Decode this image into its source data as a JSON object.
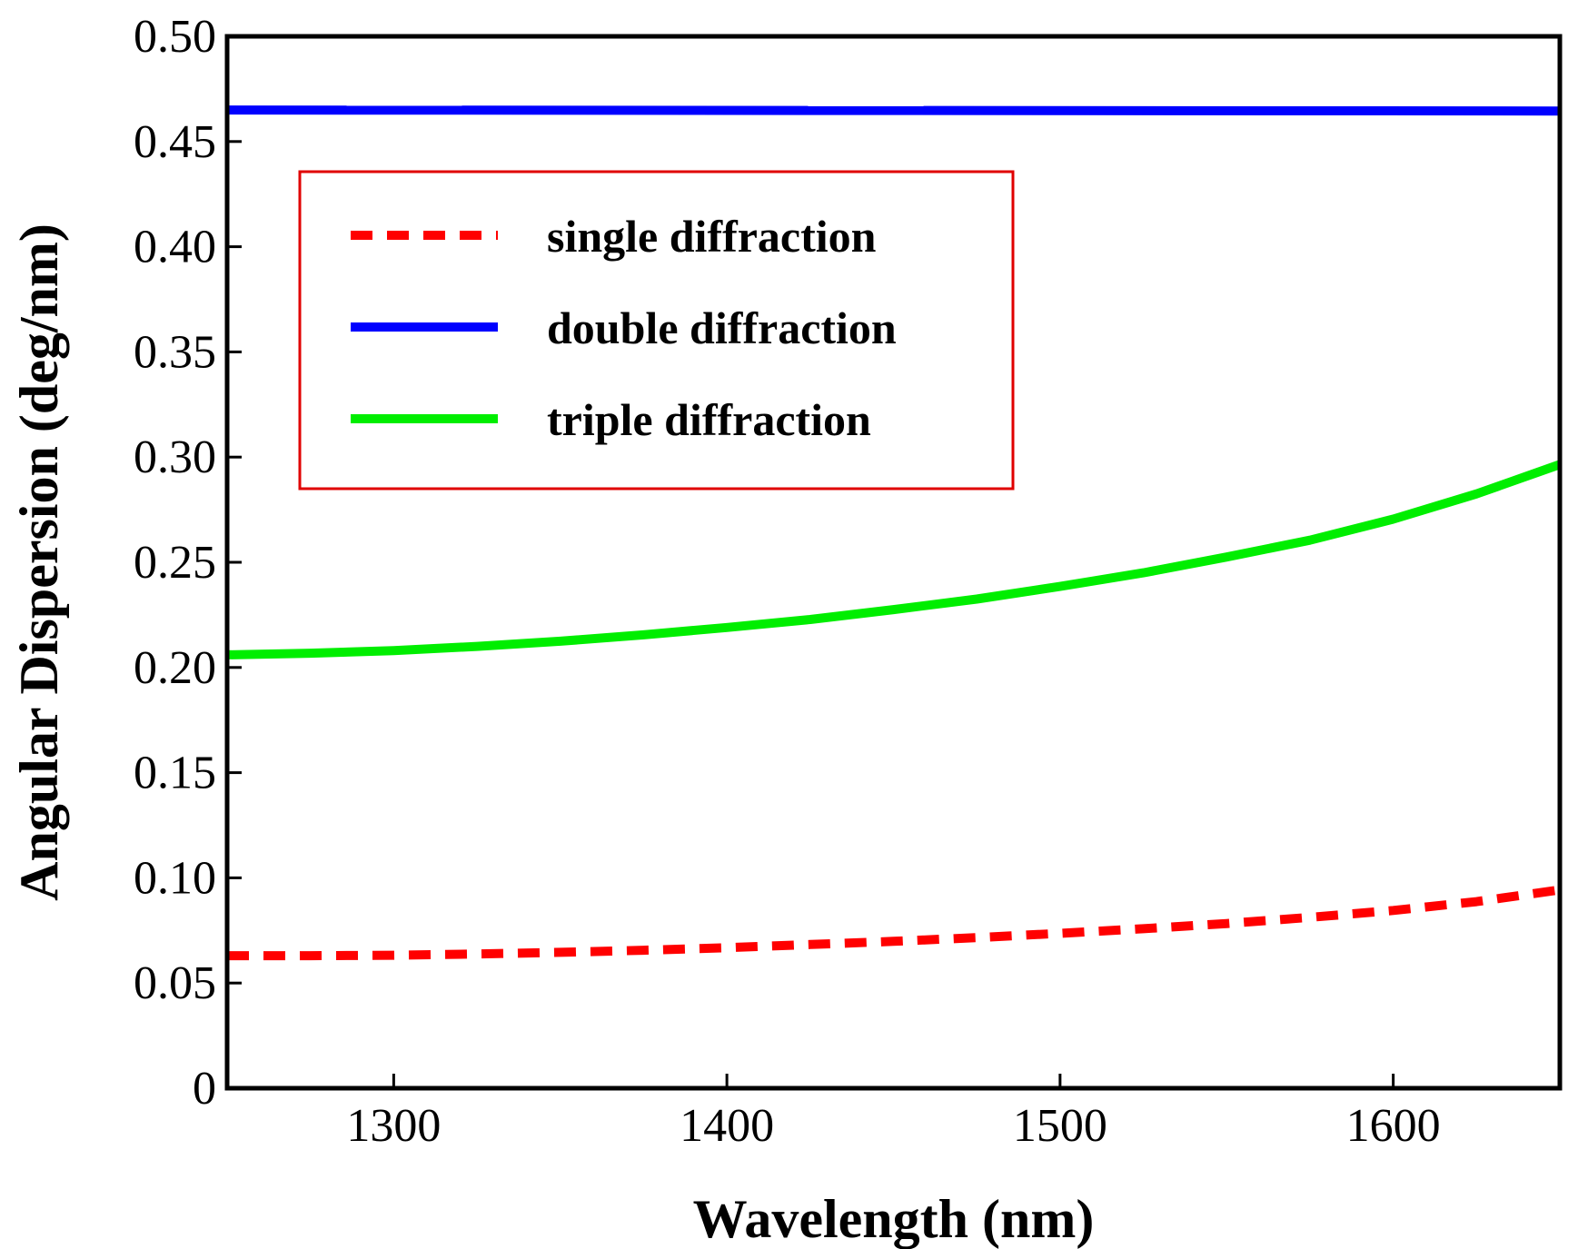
{
  "chart_data": {
    "type": "line",
    "title": "",
    "xlabel": "Wavelength (nm)",
    "ylabel": "Angular Dispersion (deg/nm)",
    "xlim": [
      1250,
      1650
    ],
    "ylim": [
      0,
      0.5
    ],
    "xticks": [
      1300,
      1400,
      1500,
      1600
    ],
    "xtick_labels": [
      "1300",
      "1400",
      "1500",
      "1600"
    ],
    "yticks": [
      0,
      0.05,
      0.1,
      0.15,
      0.2,
      0.25,
      0.3,
      0.35,
      0.4,
      0.45,
      0.5
    ],
    "ytick_labels": [
      "0",
      "0.05",
      "0.10",
      "0.15",
      "0.20",
      "0.25",
      "0.30",
      "0.35",
      "0.40",
      "0.45",
      "0.50"
    ],
    "grid": false,
    "legend_position": "upper-left",
    "legend_border_color": "#e00000",
    "series": [
      {
        "name": "single diffraction",
        "color": "#ff0000",
        "style": "dashed",
        "x": [
          1250,
          1275,
          1300,
          1325,
          1350,
          1375,
          1400,
          1425,
          1450,
          1475,
          1500,
          1525,
          1550,
          1575,
          1600,
          1625,
          1650
        ],
        "y": [
          0.063,
          0.063,
          0.0632,
          0.0638,
          0.0646,
          0.0656,
          0.0668,
          0.0683,
          0.0698,
          0.0716,
          0.0736,
          0.0758,
          0.0783,
          0.0812,
          0.0845,
          0.0887,
          0.0943
        ]
      },
      {
        "name": "double diffraction",
        "color": "#0000ff",
        "style": "solid",
        "x": [
          1250,
          1650
        ],
        "y": [
          0.465,
          0.4645
        ]
      },
      {
        "name": "triple diffraction",
        "color": "#00ee00",
        "style": "solid",
        "x": [
          1250,
          1275,
          1300,
          1325,
          1350,
          1375,
          1400,
          1425,
          1450,
          1475,
          1500,
          1525,
          1550,
          1575,
          1600,
          1625,
          1650
        ],
        "y": [
          0.206,
          0.2068,
          0.208,
          0.21,
          0.2125,
          0.2155,
          0.219,
          0.2228,
          0.2275,
          0.2325,
          0.2385,
          0.245,
          0.2525,
          0.2605,
          0.2705,
          0.2825,
          0.2965
        ]
      }
    ]
  }
}
